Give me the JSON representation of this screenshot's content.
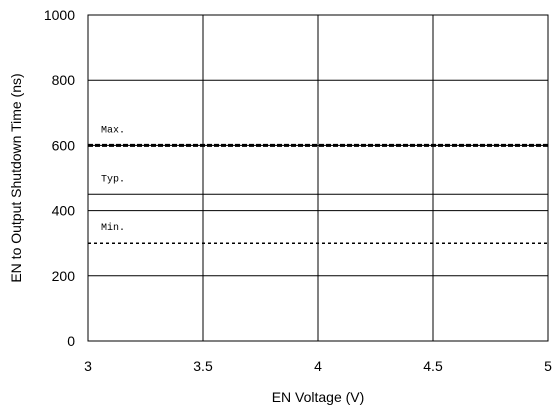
{
  "chart_data": {
    "type": "line",
    "xlabel": "EN Voltage (V)",
    "ylabel": "EN to Output Shutdown Time (ns)",
    "xlim": [
      3,
      5
    ],
    "ylim": [
      0,
      1000
    ],
    "x_ticks": [
      "3",
      "3.5",
      "4",
      "4.5",
      "5"
    ],
    "y_ticks": [
      "0",
      "200",
      "400",
      "600",
      "800",
      "1000"
    ],
    "grid": true,
    "legend": "none",
    "series": [
      {
        "name": "Max.",
        "style": "dashed-thick",
        "x": [
          3,
          5
        ],
        "y": [
          600,
          600
        ]
      },
      {
        "name": "Typ.",
        "style": "solid",
        "x": [
          3,
          5
        ],
        "y": [
          450,
          450
        ]
      },
      {
        "name": "Min.",
        "style": "dotted",
        "x": [
          3,
          5
        ],
        "y": [
          300,
          300
        ]
      }
    ],
    "colors": {
      "line": "#000000",
      "grid": "#000000",
      "background": "#ffffff"
    }
  }
}
